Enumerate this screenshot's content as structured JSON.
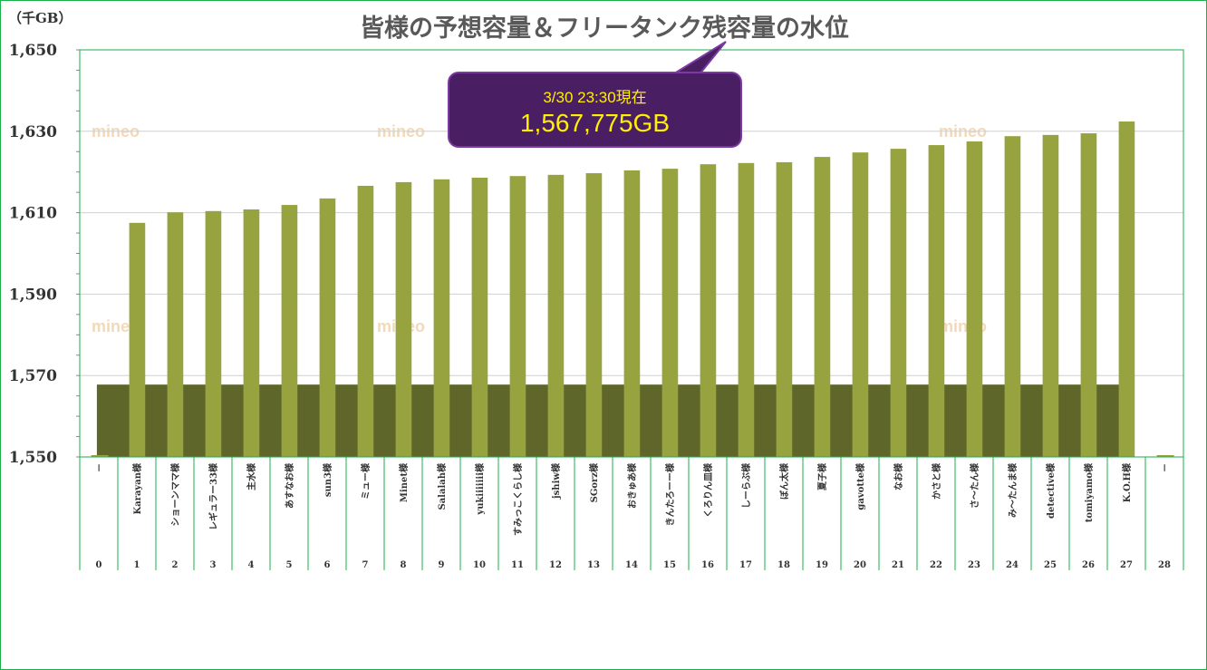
{
  "chart_data": {
    "type": "bar",
    "title": "皆様の予想容量＆フリータンク残容量の水位",
    "ylabel": "（千GB）",
    "ylim": [
      1550,
      1650
    ],
    "yticks": [
      "1,650",
      "1,630",
      "1,610",
      "1,590",
      "1,570",
      "1,550"
    ],
    "ytick_values": [
      1650,
      1630,
      1610,
      1590,
      1570,
      1550
    ],
    "grid": true,
    "x": [
      "0",
      "1",
      "2",
      "3",
      "4",
      "5",
      "6",
      "7",
      "8",
      "9",
      "10",
      "11",
      "12",
      "13",
      "14",
      "15",
      "16",
      "17",
      "18",
      "19",
      "20",
      "21",
      "22",
      "23",
      "24",
      "25",
      "26",
      "27",
      "28"
    ],
    "categories": [
      "－",
      "Karayan様",
      "ショーンママ様",
      "レギュラー33様",
      "主水様",
      "あすなお様",
      "sun3様",
      "ミュー様",
      "Minet様",
      "Salalah様",
      "yukiiiiiii様",
      "すみっこくらし様",
      "jshiw様",
      "SGorz様",
      "おきゅあ様",
      "きんたろーー様",
      "くろりん皿様",
      "しーらぶ様",
      "ぼん太様",
      "夏子様",
      "gavotte様",
      "なお様",
      "かさと様",
      "さ～たん様",
      "み～たんま様",
      "detective様",
      "tomiyamo様",
      "K.O.H様",
      "－"
    ],
    "series": [
      {
        "name": "予想容量",
        "color": "#97a33f",
        "values": [
          null,
          1607.5,
          1610.1,
          1610.4,
          1610.8,
          1611.9,
          1613.5,
          1616.6,
          1617.5,
          1618.2,
          1618.6,
          1619.0,
          1619.3,
          1619.7,
          1620.4,
          1620.8,
          1621.9,
          1622.2,
          1622.4,
          1623.7,
          1624.8,
          1625.7,
          1626.6,
          1627.5,
          1628.8,
          1629.1,
          1629.5,
          1632.4,
          null
        ]
      },
      {
        "name": "フリータンク残容量",
        "color": "#5e6629",
        "value": 1567.775
      }
    ],
    "annotation": {
      "date": "3/30 23:30現在",
      "value": "1,567,775GB"
    }
  }
}
